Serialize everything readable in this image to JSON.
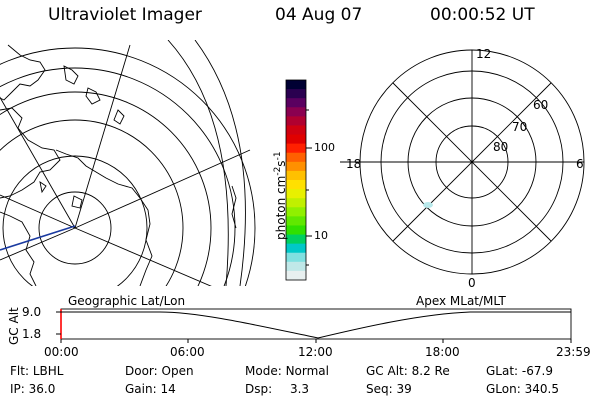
{
  "header": {
    "instrument": "Ultraviolet Imager",
    "date": "04 Aug 07",
    "time": "00:00:52 UT"
  },
  "colorbar": {
    "unit_label": "photon cm",
    "unit_exp1": "-2",
    "unit_mid": "s",
    "unit_exp2": "-1",
    "ticks": [
      "100",
      "10"
    ],
    "colors": [
      "#000033",
      "#2a0050",
      "#5a0060",
      "#8a0050",
      "#b00030",
      "#d00010",
      "#e00000",
      "#ff2000",
      "#ff6000",
      "#ff9000",
      "#ffc000",
      "#ffe000",
      "#e8f000",
      "#c0f000",
      "#90f000",
      "#60e800",
      "#30e000",
      "#00d060",
      "#00c8c8",
      "#80e0e0",
      "#c0e8e8",
      "#e8f0f0"
    ]
  },
  "polar_plot": {
    "mlt_labels": {
      "top": "12",
      "left": "18",
      "right": "6",
      "bottom": "0"
    },
    "lat_labels": [
      "60",
      "70",
      "80"
    ]
  },
  "map_labels": {
    "geographic": "Geographic Lat/Lon",
    "apex": "Apex MLat/MLT"
  },
  "altitude_panel": {
    "axis_label": "GC Alt",
    "y_ticks": [
      "9.0",
      "1.8"
    ],
    "x_ticks": [
      "00:00",
      "06:00",
      "12:00",
      "18:00",
      "23:59"
    ]
  },
  "footer": {
    "row1": [
      {
        "label": "Flt:",
        "value": "LBHL"
      },
      {
        "label": "Door:",
        "value": "Open"
      },
      {
        "label": "Mode:",
        "value": "Normal"
      },
      {
        "label": "GC Alt:",
        "value": "8.2 Re"
      },
      {
        "label": "GLat:",
        "value": "-67.9"
      }
    ],
    "row2": [
      {
        "label": "IP:",
        "value": "36.0"
      },
      {
        "label": "Gain:",
        "value": "14"
      },
      {
        "label": "Dsp:",
        "value": "3.3"
      },
      {
        "label": "Seq:",
        "value": "39"
      },
      {
        "label": "GLon:",
        "value": "340.5"
      }
    ]
  }
}
